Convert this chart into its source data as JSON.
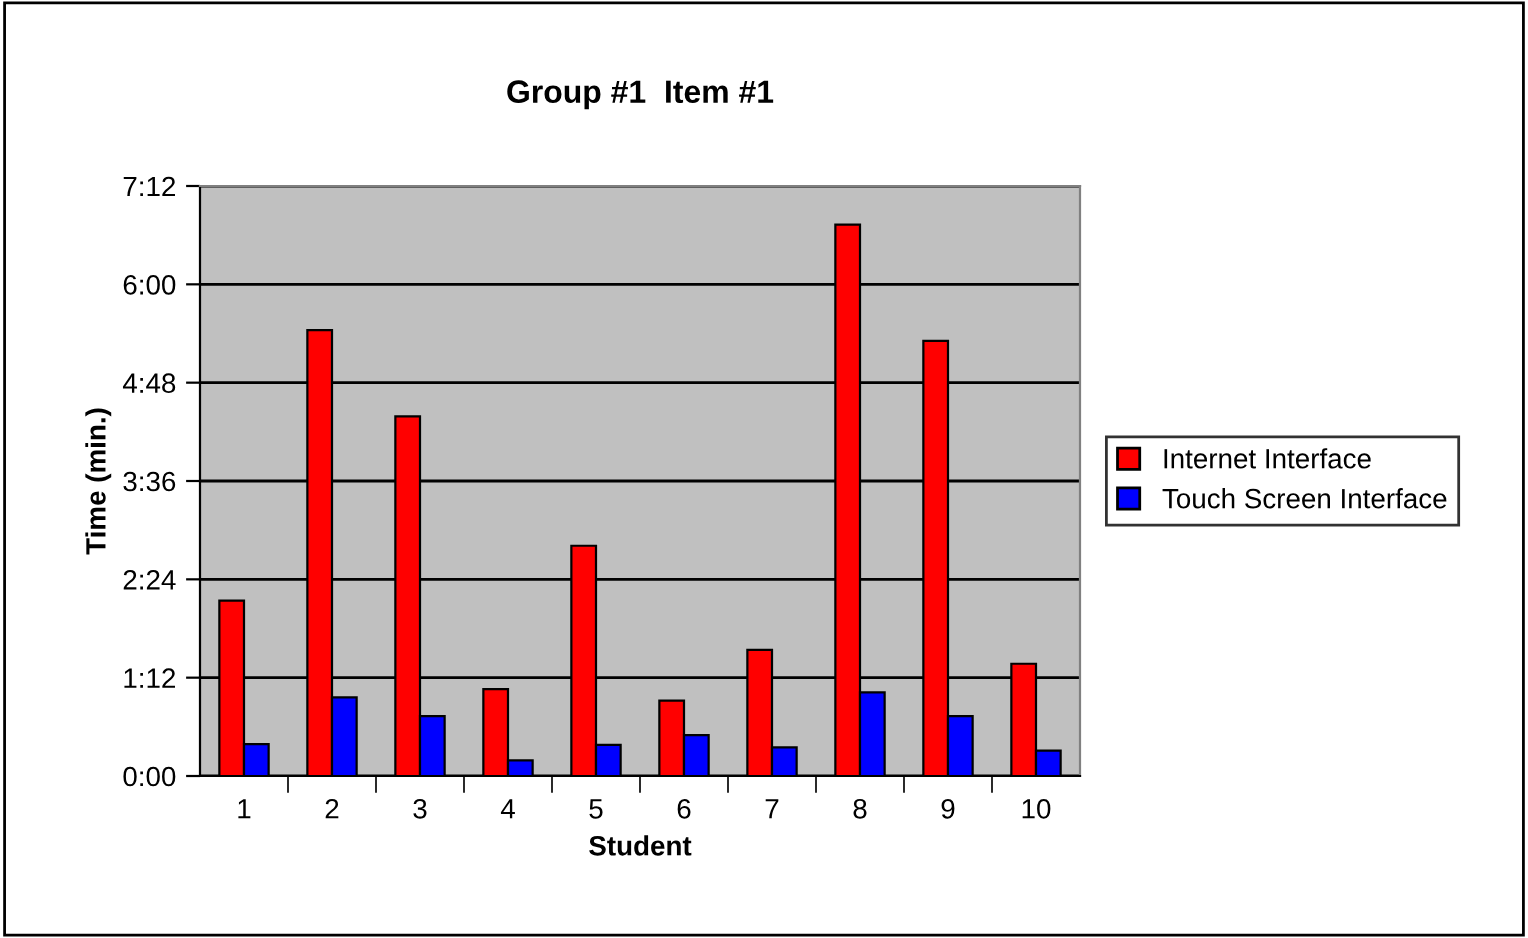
{
  "chart_data": {
    "type": "bar",
    "title": "Group #1  Item #1",
    "xlabel": "Student",
    "ylabel": "Time (min.)",
    "categories": [
      "1",
      "2",
      "3",
      "4",
      "5",
      "6",
      "7",
      "8",
      "9",
      "10"
    ],
    "series": [
      {
        "name": "Internet Interface",
        "color": "#ff0000",
        "values": [
          2.14,
          5.44,
          4.39,
          1.06,
          2.81,
          0.92,
          1.54,
          6.73,
          5.31,
          1.37
        ]
      },
      {
        "name": "Touch Screen Interface",
        "color": "#0000ff",
        "values": [
          0.39,
          0.96,
          0.73,
          0.19,
          0.38,
          0.5,
          0.35,
          1.02,
          0.73,
          0.31
        ]
      }
    ],
    "ylim": [
      0,
      7.2
    ],
    "yticks": [
      {
        "value": 0,
        "label": "0:00"
      },
      {
        "value": 1.2,
        "label": "1:12"
      },
      {
        "value": 2.4,
        "label": "2:24"
      },
      {
        "value": 3.6,
        "label": "3:36"
      },
      {
        "value": 4.8,
        "label": "4:48"
      },
      {
        "value": 6.0,
        "label": "6:00"
      },
      {
        "value": 7.2,
        "label": "7:12"
      }
    ],
    "grid": "y",
    "legend": "right"
  }
}
